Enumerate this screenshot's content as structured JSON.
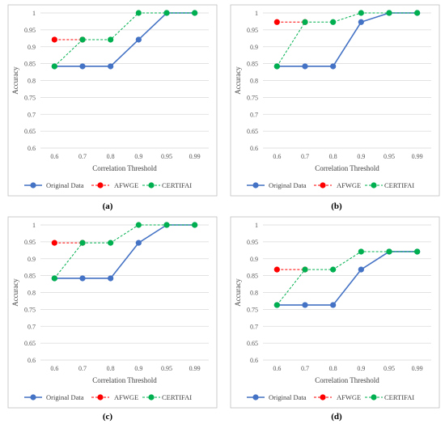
{
  "colors": {
    "original": "#4472C4",
    "afwge": "#FF0000",
    "certifai": "#00B050",
    "grid": "#D9D9D9",
    "border": "#BFBFBF"
  },
  "chart_data": [
    {
      "type": "line",
      "caption": "(a)",
      "categories": [
        "0.6",
        "0.7",
        "0.8",
        "0.9",
        "0.95",
        "0.99"
      ],
      "xlabel": "Correlation Threshold",
      "ylabel": "Accuracy",
      "ylim": [
        0.6,
        1.0
      ],
      "yticks": [
        "0.6",
        "0.65",
        "0.7",
        "0.75",
        "0.8",
        "0.85",
        "0.9",
        "0.95",
        "1"
      ],
      "grid": true,
      "legend_position": "bottom",
      "series": [
        {
          "name": "Original Data",
          "values": [
            0.842,
            0.842,
            0.842,
            0.921,
            1.0,
            1.0
          ],
          "style": "solid",
          "color": "#4472C4"
        },
        {
          "name": "AFWGE",
          "values": [
            0.921,
            0.921,
            null,
            null,
            null,
            null
          ],
          "style": "dashed",
          "color": "#FF0000"
        },
        {
          "name": "CERTIFAI",
          "values": [
            0.842,
            0.921,
            0.921,
            1.0,
            1.0,
            1.0
          ],
          "style": "dashed",
          "color": "#00B050"
        }
      ]
    },
    {
      "type": "line",
      "caption": "(b)",
      "categories": [
        "0.6",
        "0.7",
        "0.8",
        "0.9",
        "0.95",
        "0.99"
      ],
      "xlabel": "Correlation Threshold",
      "ylabel": "Accuracy",
      "ylim": [
        0.6,
        1.0
      ],
      "yticks": [
        "0.6",
        "0.65",
        "0.7",
        "0.75",
        "0.8",
        "0.85",
        "0.9",
        "0.95",
        "1"
      ],
      "grid": true,
      "legend_position": "bottom",
      "series": [
        {
          "name": "Original Data",
          "values": [
            0.842,
            0.842,
            0.842,
            0.973,
            1.0,
            1.0
          ],
          "style": "solid",
          "color": "#4472C4"
        },
        {
          "name": "AFWGE",
          "values": [
            0.973,
            0.973,
            null,
            null,
            null,
            null
          ],
          "style": "dashed",
          "color": "#FF0000"
        },
        {
          "name": "CERTIFAI",
          "values": [
            0.842,
            0.973,
            0.973,
            1.0,
            1.0,
            1.0
          ],
          "style": "dashed",
          "color": "#00B050"
        }
      ]
    },
    {
      "type": "line",
      "caption": "(c)",
      "categories": [
        "0.6",
        "0.7",
        "0.8",
        "0.9",
        "0.95",
        "0.99"
      ],
      "xlabel": "Correlation Threshold",
      "ylabel": "Accuracy",
      "ylim": [
        0.6,
        1.0
      ],
      "yticks": [
        "0.6",
        "0.65",
        "0.7",
        "0.75",
        "0.8",
        "0.85",
        "0.9",
        "0.95",
        "1"
      ],
      "grid": true,
      "legend_position": "bottom",
      "series": [
        {
          "name": "Original Data",
          "values": [
            0.842,
            0.842,
            0.842,
            0.947,
            1.0,
            1.0
          ],
          "style": "solid",
          "color": "#4472C4"
        },
        {
          "name": "AFWGE",
          "values": [
            0.947,
            0.947,
            null,
            null,
            null,
            null
          ],
          "style": "dashed",
          "color": "#FF0000"
        },
        {
          "name": "CERTIFAI",
          "values": [
            0.842,
            0.947,
            0.947,
            1.0,
            1.0,
            1.0
          ],
          "style": "dashed",
          "color": "#00B050"
        }
      ]
    },
    {
      "type": "line",
      "caption": "(d)",
      "categories": [
        "0.6",
        "0.7",
        "0.8",
        "0.9",
        "0.95",
        "0.99"
      ],
      "xlabel": "Correlation Threshold",
      "ylabel": "Accuracy",
      "ylim": [
        0.6,
        1.0
      ],
      "yticks": [
        "0.6",
        "0.65",
        "0.7",
        "0.75",
        "0.8",
        "0.85",
        "0.9",
        "0.95",
        "1"
      ],
      "grid": true,
      "legend_position": "bottom",
      "series": [
        {
          "name": "Original Data",
          "values": [
            0.763,
            0.763,
            0.763,
            0.868,
            0.921,
            0.921
          ],
          "style": "solid",
          "color": "#4472C4"
        },
        {
          "name": "AFWGE",
          "values": [
            0.868,
            0.868,
            null,
            null,
            null,
            null
          ],
          "style": "dashed",
          "color": "#FF0000"
        },
        {
          "name": "CERTIFAI",
          "values": [
            0.763,
            0.868,
            0.868,
            0.921,
            0.921,
            0.921
          ],
          "style": "dashed",
          "color": "#00B050"
        }
      ]
    }
  ]
}
